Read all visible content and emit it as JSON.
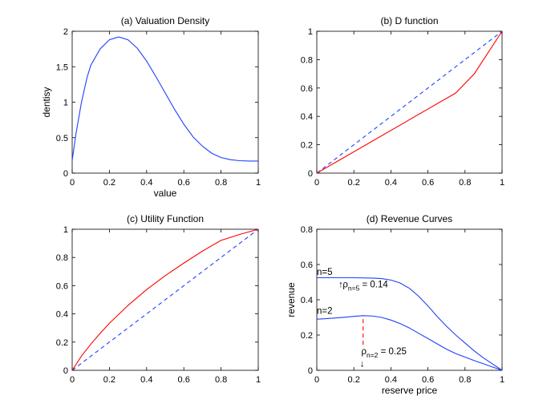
{
  "figure": {
    "colors": {
      "blue": "#1f3fff",
      "red": "#ff0000",
      "axis": "#000000",
      "background": "#ffffff"
    }
  },
  "chart_data": [
    {
      "id": "a",
      "type": "line",
      "title": "(a) Valuation Density",
      "xlabel": "value",
      "ylabel": "dentisy",
      "xlim": [
        0,
        1
      ],
      "ylim": [
        0,
        2
      ],
      "xticks": [
        0,
        0.2,
        0.4,
        0.6,
        0.8,
        1
      ],
      "xticklabels": [
        "0",
        "0.2",
        "0.4",
        "0.6",
        "0.8",
        "1"
      ],
      "yticks": [
        0,
        0.5,
        1,
        1.5,
        2
      ],
      "yticklabels": [
        "0",
        "0.5",
        "1",
        "1.5",
        "2"
      ],
      "series": [
        {
          "name": "density",
          "color": "#1f3fff",
          "dash": "solid",
          "x": [
            0,
            0.02,
            0.05,
            0.08,
            0.1,
            0.15,
            0.2,
            0.25,
            0.3,
            0.35,
            0.4,
            0.45,
            0.5,
            0.55,
            0.6,
            0.65,
            0.7,
            0.75,
            0.8,
            0.85,
            0.9,
            0.95,
            1
          ],
          "y": [
            0.18,
            0.55,
            1.0,
            1.35,
            1.52,
            1.75,
            1.88,
            1.92,
            1.88,
            1.76,
            1.58,
            1.36,
            1.13,
            0.9,
            0.69,
            0.51,
            0.38,
            0.28,
            0.22,
            0.19,
            0.175,
            0.17,
            0.17
          ]
        }
      ],
      "annotations": []
    },
    {
      "id": "b",
      "type": "line",
      "title": "(b) D function",
      "xlabel": "",
      "ylabel": "",
      "xlim": [
        0,
        1
      ],
      "ylim": [
        0,
        1
      ],
      "xticks": [
        0,
        0.2,
        0.4,
        0.6,
        0.8,
        1
      ],
      "xticklabels": [
        "0",
        "0.2",
        "0.4",
        "0.6",
        "0.8",
        "1"
      ],
      "yticks": [
        0,
        0.2,
        0.4,
        0.6,
        0.8,
        1
      ],
      "yticklabels": [
        "0",
        "0.2",
        "0.4",
        "0.6",
        "0.8",
        "1"
      ],
      "series": [
        {
          "name": "identity",
          "color": "#1f3fff",
          "dash": "dashed",
          "x": [
            0,
            1
          ],
          "y": [
            0,
            1
          ]
        },
        {
          "name": "D",
          "color": "#ff0000",
          "dash": "solid",
          "x": [
            0,
            0.75,
            0.85,
            1
          ],
          "y": [
            0,
            0.565,
            0.7,
            1
          ]
        }
      ],
      "annotations": []
    },
    {
      "id": "c",
      "type": "line",
      "title": "(c) Utility Function",
      "xlabel": "",
      "ylabel": "",
      "xlim": [
        0,
        1
      ],
      "ylim": [
        0,
        1
      ],
      "xticks": [
        0,
        0.2,
        0.4,
        0.6,
        0.8,
        1
      ],
      "xticklabels": [
        "0",
        "0.2",
        "0.4",
        "0.6",
        "0.8",
        "1"
      ],
      "yticks": [
        0,
        0.2,
        0.4,
        0.6,
        0.8,
        1
      ],
      "yticklabels": [
        "0",
        "0.2",
        "0.4",
        "0.6",
        "0.8",
        "1"
      ],
      "series": [
        {
          "name": "identity",
          "color": "#1f3fff",
          "dash": "dashed",
          "x": [
            0,
            1
          ],
          "y": [
            0,
            1
          ]
        },
        {
          "name": "utility",
          "color": "#ff0000",
          "dash": "solid",
          "x": [
            0,
            0.05,
            0.1,
            0.15,
            0.2,
            0.3,
            0.4,
            0.5,
            0.6,
            0.7,
            0.8,
            0.9,
            1
          ],
          "y": [
            0,
            0.101,
            0.185,
            0.262,
            0.333,
            0.46,
            0.572,
            0.671,
            0.76,
            0.845,
            0.921,
            0.963,
            1
          ]
        }
      ],
      "annotations": []
    },
    {
      "id": "d",
      "type": "line",
      "title": "(d) Revenue Curves",
      "xlabel": "reserve price",
      "ylabel": "revenue",
      "xlim": [
        0,
        1
      ],
      "ylim": [
        0,
        0.8
      ],
      "xticks": [
        0,
        0.2,
        0.4,
        0.6,
        0.8,
        1
      ],
      "xticklabels": [
        "0",
        "0.2",
        "0.4",
        "0.6",
        "0.8",
        "1"
      ],
      "yticks": [
        0,
        0.2,
        0.4,
        0.6,
        0.8
      ],
      "yticklabels": [
        "0",
        "0.2",
        "0.4",
        "0.6",
        "0.8"
      ],
      "series": [
        {
          "name": "n=5",
          "color": "#1f3fff",
          "dash": "solid",
          "x": [
            0,
            0.1,
            0.2,
            0.3,
            0.35,
            0.4,
            0.45,
            0.5,
            0.55,
            0.6,
            0.65,
            0.7,
            0.75,
            0.8,
            0.85,
            0.9,
            0.95,
            1
          ],
          "y": [
            0.525,
            0.525,
            0.525,
            0.523,
            0.52,
            0.512,
            0.495,
            0.465,
            0.42,
            0.365,
            0.305,
            0.25,
            0.2,
            0.155,
            0.11,
            0.07,
            0.035,
            0
          ]
        },
        {
          "name": "n=2",
          "color": "#1f3fff",
          "dash": "solid",
          "x": [
            0,
            0.05,
            0.1,
            0.15,
            0.2,
            0.25,
            0.3,
            0.35,
            0.4,
            0.45,
            0.5,
            0.55,
            0.6,
            0.65,
            0.7,
            0.75,
            0.8,
            0.85,
            0.9,
            0.95,
            1
          ],
          "y": [
            0.29,
            0.293,
            0.297,
            0.301,
            0.306,
            0.31,
            0.308,
            0.3,
            0.285,
            0.265,
            0.24,
            0.21,
            0.18,
            0.15,
            0.12,
            0.095,
            0.075,
            0.055,
            0.037,
            0.018,
            0
          ]
        },
        {
          "name": "optimal reserve marker",
          "color": "#ff0000",
          "dash": "dashed",
          "x": [
            0.25,
            0.25
          ],
          "y": [
            0.145,
            0.31
          ]
        }
      ],
      "annotations": [
        {
          "id": "n5",
          "pre": "n=5",
          "sub": "",
          "post": "",
          "x": 0.0,
          "y": 0.54,
          "anchor": "start"
        },
        {
          "id": "n2",
          "pre": "n=2",
          "sub": "",
          "post": "",
          "x": 0.0,
          "y": 0.32,
          "anchor": "start"
        },
        {
          "id": "rho5",
          "pre": "ρ",
          "sub": "n=5",
          "post": " = 0.14",
          "x": 0.14,
          "y": 0.47,
          "anchor": "start"
        },
        {
          "id": "rho2",
          "pre": "ρ",
          "sub": "n=2",
          "post": " = 0.25",
          "x": 0.24,
          "y": 0.09,
          "anchor": "start"
        }
      ],
      "arrows": [
        {
          "id": "arrow5",
          "glyph": "↑",
          "x": 0.13,
          "y": 0.47
        },
        {
          "id": "arrow2",
          "glyph": "↓",
          "x": 0.245,
          "y": 0.02
        }
      ]
    }
  ]
}
